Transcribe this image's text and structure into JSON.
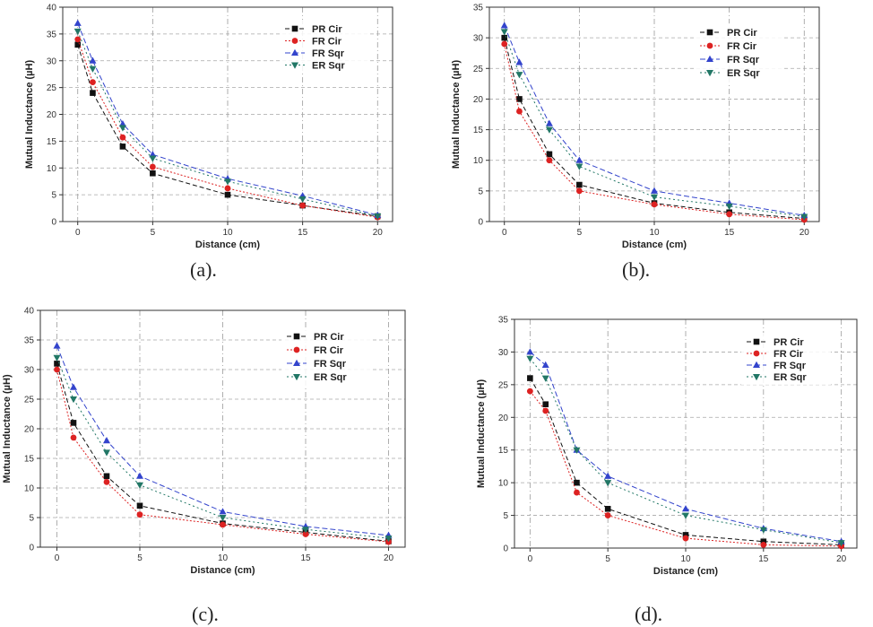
{
  "chart_data": [
    {
      "type": "line",
      "caption": "(a).",
      "xlabel": "Distance (cm)",
      "ylabel": "Mutual Inductance (µH)",
      "xlim": [
        -1,
        21
      ],
      "ylim": [
        0,
        40
      ],
      "xticks": [
        0,
        5,
        10,
        15,
        20
      ],
      "yticks": [
        0,
        5,
        10,
        15,
        20,
        25,
        30,
        35,
        40
      ],
      "x": [
        0,
        1,
        3,
        5,
        10,
        15,
        20
      ],
      "legend_position": "top-right",
      "series": [
        {
          "name": "PR Cir",
          "color": "#111111",
          "marker": "square",
          "values": [
            33,
            24,
            14,
            9,
            5,
            3,
            1
          ]
        },
        {
          "name": "FR Cir",
          "color": "#dd2222",
          "marker": "circle",
          "values": [
            34,
            26,
            15.7,
            10.2,
            6.2,
            3,
            0.8
          ]
        },
        {
          "name": "FR Sqr",
          "color": "#3344cc",
          "marker": "triangle-up",
          "values": [
            37,
            30,
            18.2,
            12.5,
            8,
            4.8,
            1.2
          ]
        },
        {
          "name": "ER Sqr",
          "color": "#227766",
          "marker": "triangle-down",
          "values": [
            35.5,
            28.5,
            17.5,
            11.8,
            7.5,
            4.2,
            1
          ]
        }
      ]
    },
    {
      "type": "line",
      "caption": "(b).",
      "xlabel": "Distance (cm)",
      "ylabel": "Mutual Inductance (µH)",
      "xlim": [
        -1,
        21
      ],
      "ylim": [
        0,
        35
      ],
      "xticks": [
        0,
        5,
        10,
        15,
        20
      ],
      "yticks": [
        0,
        5,
        10,
        15,
        20,
        25,
        30,
        35
      ],
      "x": [
        0,
        1,
        3,
        5,
        10,
        15,
        20
      ],
      "legend_position": "top-right",
      "series": [
        {
          "name": "PR Cir",
          "color": "#111111",
          "marker": "square",
          "values": [
            30,
            20,
            11,
            6,
            3,
            1.5,
            0.5
          ]
        },
        {
          "name": "FR Cir",
          "color": "#dd2222",
          "marker": "circle",
          "values": [
            29,
            18,
            10,
            5,
            2.8,
            1.2,
            0.3
          ]
        },
        {
          "name": "FR Sqr",
          "color": "#3344cc",
          "marker": "triangle-up",
          "values": [
            32,
            26,
            16,
            10,
            5,
            3,
            1
          ]
        },
        {
          "name": "ER Sqr",
          "color": "#227766",
          "marker": "triangle-down",
          "values": [
            31,
            24,
            15,
            9,
            4,
            2.5,
            0.8
          ]
        }
      ]
    },
    {
      "type": "line",
      "caption": "(c).",
      "xlabel": "Distance (cm)",
      "ylabel": "Mutual Inductance (µH)",
      "xlim": [
        -1,
        21
      ],
      "ylim": [
        0,
        40
      ],
      "xticks": [
        0,
        5,
        10,
        15,
        20
      ],
      "yticks": [
        0,
        5,
        10,
        15,
        20,
        25,
        30,
        35,
        40
      ],
      "x": [
        0,
        1,
        3,
        5,
        10,
        15,
        20
      ],
      "legend_position": "top-right",
      "series": [
        {
          "name": "PR Cir",
          "color": "#111111",
          "marker": "square",
          "values": [
            31,
            21,
            12,
            7,
            4,
            2.5,
            1
          ]
        },
        {
          "name": "FR Cir",
          "color": "#dd2222",
          "marker": "circle",
          "values": [
            30,
            18.5,
            11,
            5.5,
            3.8,
            2.2,
            0.9
          ]
        },
        {
          "name": "FR Sqr",
          "color": "#3344cc",
          "marker": "triangle-up",
          "values": [
            34,
            27,
            18,
            12,
            6,
            3.5,
            2
          ]
        },
        {
          "name": "ER Sqr",
          "color": "#227766",
          "marker": "triangle-down",
          "values": [
            32,
            25,
            16,
            10.5,
            5,
            3,
            1.5
          ]
        }
      ]
    },
    {
      "type": "line",
      "caption": "(d).",
      "xlabel": "Distance (cm)",
      "ylabel": "Mutual Inductance (µH)",
      "xlim": [
        -1,
        21
      ],
      "ylim": [
        0,
        35
      ],
      "xticks": [
        0,
        5,
        10,
        15,
        20
      ],
      "yticks": [
        0,
        5,
        10,
        15,
        20,
        25,
        30,
        35
      ],
      "x": [
        0,
        1,
        3,
        5,
        10,
        15,
        20
      ],
      "legend_position": "top-right",
      "series": [
        {
          "name": "PR Cir",
          "color": "#111111",
          "marker": "square",
          "values": [
            26,
            22,
            10,
            6,
            2,
            1,
            0.5
          ]
        },
        {
          "name": "FR Cir",
          "color": "#dd2222",
          "marker": "circle",
          "values": [
            24,
            21,
            8.5,
            5,
            1.5,
            0.5,
            0.3
          ]
        },
        {
          "name": "FR Sqr",
          "color": "#3344cc",
          "marker": "triangle-up",
          "values": [
            30,
            28,
            15,
            11,
            6,
            3,
            1
          ]
        },
        {
          "name": "ER Sqr",
          "color": "#227766",
          "marker": "triangle-down",
          "values": [
            29,
            26,
            15,
            10,
            5,
            2.8,
            0.8
          ]
        }
      ]
    }
  ]
}
